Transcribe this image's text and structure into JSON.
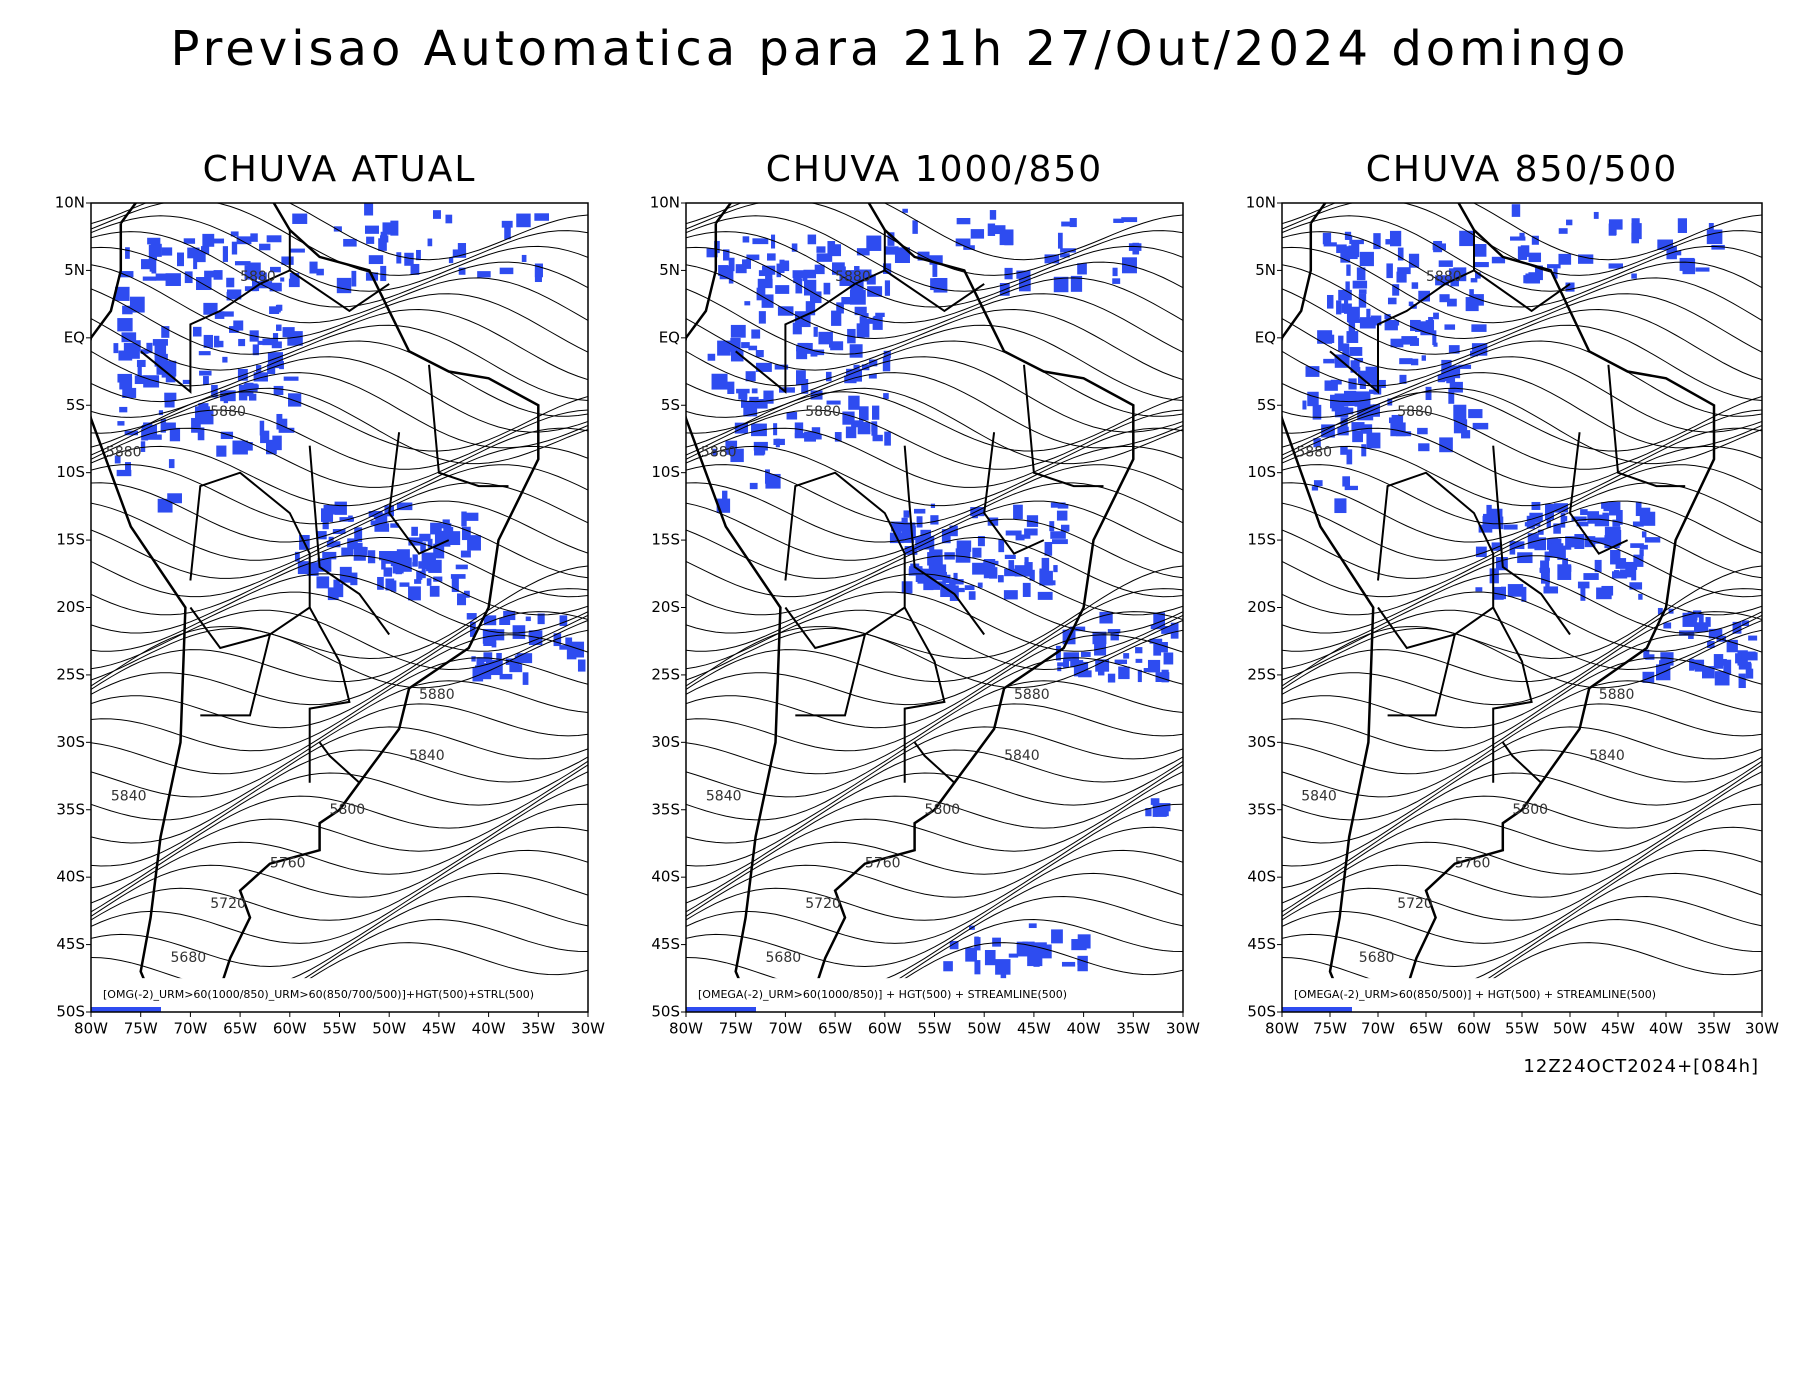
{
  "header": {
    "title": "Previsao Automatica para 21h 27/Out/2024 domingo"
  },
  "panels": [
    {
      "title": "CHUVA ATUAL",
      "caption": "[OMG(-2)_URM>60(1000/850)_URM>60(850/700/500)]+HGT(500)+STRL(500)",
      "contour_labels": [
        "5880",
        "5880",
        "5880",
        "5880",
        "5840",
        "5840",
        "5800",
        "5760",
        "5720",
        "5680"
      ]
    },
    {
      "title": "CHUVA 1000/850",
      "caption": "[OMEGA(-2)_URM>60(1000/850)] + HGT(500) + STREAMLINE(500)",
      "contour_labels": [
        "5880",
        "5880",
        "5880",
        "5880",
        "5840",
        "5840",
        "5800",
        "5760",
        "5720",
        "5680"
      ]
    },
    {
      "title": "CHUVA 850/500",
      "caption": "[OMEGA(-2)_URM>60(850/500)] + HGT(500) + STREAMLINE(500)",
      "contour_labels": [
        "5880",
        "5880",
        "5880",
        "5880",
        "5840",
        "5840",
        "5800",
        "5760",
        "5720",
        "5680"
      ]
    }
  ],
  "lat_labels": [
    "10N",
    "5N",
    "EQ",
    "5S",
    "10S",
    "15S",
    "20S",
    "25S",
    "30S",
    "35S",
    "40S",
    "45S",
    "50S"
  ],
  "lon_labels": [
    "80W",
    "75W",
    "70W",
    "65W",
    "60W",
    "55W",
    "50W",
    "45W",
    "40W",
    "35W",
    "30W"
  ],
  "footer": "12Z24OCT2024+[084h]"
}
